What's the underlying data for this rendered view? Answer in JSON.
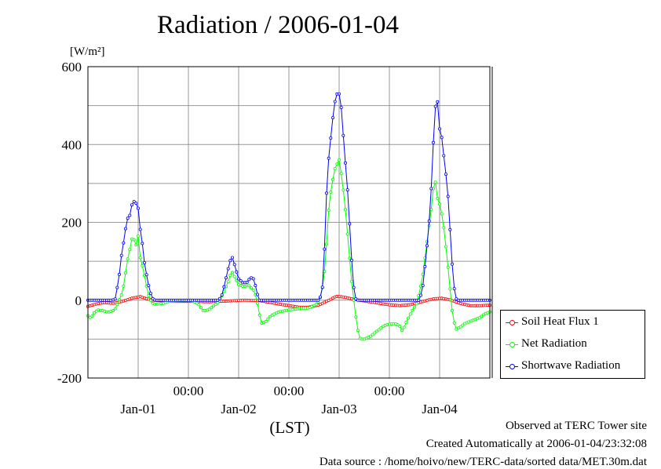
{
  "chart_data": {
    "type": "line",
    "title": "Radiation / 2006-01-04",
    "ylabel": "[W/m²]",
    "xlabel": "(LST)",
    "ylim": [
      -200,
      600
    ],
    "yticks": [
      -200,
      0,
      200,
      400,
      600
    ],
    "xlim": [
      0,
      4
    ],
    "x_time_ticks": [
      {
        "x": 1,
        "label": "00:00"
      },
      {
        "x": 2,
        "label": "00:00"
      },
      {
        "x": 3,
        "label": "00:00"
      }
    ],
    "x_day_labels": [
      {
        "x": 0.5,
        "label": "Jan-01"
      },
      {
        "x": 1.5,
        "label": "Jan-02"
      },
      {
        "x": 2.5,
        "label": "Jan-03"
      },
      {
        "x": 3.5,
        "label": "Jan-04"
      }
    ],
    "x_gridlines": [
      0.5,
      1,
      1.5,
      2,
      2.5,
      3,
      3.5
    ],
    "y_gridlines": [
      -100,
      0,
      100,
      200,
      300,
      400,
      500
    ],
    "grid": true,
    "legend_position": "bottom-right",
    "series": [
      {
        "name": "Soil Heat Flux 1",
        "color": "#ff0000",
        "points": [
          [
            0,
            -16
          ],
          [
            0.08,
            -10
          ],
          [
            0.16,
            -6
          ],
          [
            0.24,
            -8
          ],
          [
            0.3,
            -6
          ],
          [
            0.38,
            0
          ],
          [
            0.45,
            6
          ],
          [
            0.52,
            9
          ],
          [
            0.58,
            4
          ],
          [
            0.65,
            0
          ],
          [
            0.75,
            -2
          ],
          [
            0.85,
            -3
          ],
          [
            1,
            -3
          ],
          [
            1.2,
            -4
          ],
          [
            1.4,
            -2
          ],
          [
            1.55,
            0
          ],
          [
            1.7,
            -1
          ],
          [
            1.8,
            -5
          ],
          [
            1.9,
            -10
          ],
          [
            2.0,
            -14
          ],
          [
            2.1,
            -18
          ],
          [
            2.2,
            -18
          ],
          [
            2.3,
            -12
          ],
          [
            2.4,
            0
          ],
          [
            2.47,
            10
          ],
          [
            2.55,
            8
          ],
          [
            2.65,
            2
          ],
          [
            2.75,
            -2
          ],
          [
            2.9,
            -8
          ],
          [
            3.0,
            -12
          ],
          [
            3.1,
            -14
          ],
          [
            3.2,
            -12
          ],
          [
            3.3,
            -6
          ],
          [
            3.38,
            0
          ],
          [
            3.45,
            4
          ],
          [
            3.52,
            5
          ],
          [
            3.6,
            1
          ],
          [
            3.7,
            -8
          ],
          [
            3.8,
            -14
          ],
          [
            3.9,
            -14
          ],
          [
            4,
            -13
          ]
        ]
      },
      {
        "name": "Net Radiation",
        "color": "#00ff00",
        "points": [
          [
            0,
            -40
          ],
          [
            0.03,
            -46
          ],
          [
            0.06,
            -33
          ],
          [
            0.1,
            -25
          ],
          [
            0.15,
            -27
          ],
          [
            0.2,
            -31
          ],
          [
            0.25,
            -27
          ],
          [
            0.28,
            -20
          ],
          [
            0.3,
            -5
          ],
          [
            0.33,
            10
          ],
          [
            0.35,
            30
          ],
          [
            0.37,
            60
          ],
          [
            0.39,
            100
          ],
          [
            0.41,
            120
          ],
          [
            0.43,
            150
          ],
          [
            0.45,
            170
          ],
          [
            0.47,
            135
          ],
          [
            0.49,
            150
          ],
          [
            0.5,
            165
          ],
          [
            0.52,
            110
          ],
          [
            0.55,
            80
          ],
          [
            0.58,
            40
          ],
          [
            0.61,
            5
          ],
          [
            0.65,
            -10
          ],
          [
            0.7,
            -10
          ],
          [
            0.75,
            -8
          ],
          [
            0.8,
            -3
          ],
          [
            0.9,
            -2
          ],
          [
            1,
            0
          ],
          [
            1.05,
            -3
          ],
          [
            1.1,
            -10
          ],
          [
            1.15,
            -28
          ],
          [
            1.2,
            -25
          ],
          [
            1.25,
            -15
          ],
          [
            1.3,
            -5
          ],
          [
            1.35,
            20
          ],
          [
            1.4,
            50
          ],
          [
            1.43,
            75
          ],
          [
            1.46,
            60
          ],
          [
            1.5,
            40
          ],
          [
            1.55,
            35
          ],
          [
            1.6,
            38
          ],
          [
            1.65,
            25
          ],
          [
            1.68,
            5
          ],
          [
            1.7,
            -30
          ],
          [
            1.73,
            -60
          ],
          [
            1.77,
            -55
          ],
          [
            1.82,
            -40
          ],
          [
            1.9,
            -30
          ],
          [
            2.0,
            -25
          ],
          [
            2.1,
            -22
          ],
          [
            2.2,
            -20
          ],
          [
            2.28,
            -10
          ],
          [
            2.32,
            10
          ],
          [
            2.35,
            60
          ],
          [
            2.38,
            160
          ],
          [
            2.4,
            250
          ],
          [
            2.43,
            300
          ],
          [
            2.46,
            340
          ],
          [
            2.5,
            360
          ],
          [
            2.53,
            310
          ],
          [
            2.56,
            240
          ],
          [
            2.59,
            150
          ],
          [
            2.62,
            60
          ],
          [
            2.65,
            -10
          ],
          [
            2.68,
            -70
          ],
          [
            2.71,
            -100
          ],
          [
            2.75,
            -100
          ],
          [
            2.8,
            -95
          ],
          [
            2.85,
            -85
          ],
          [
            2.9,
            -75
          ],
          [
            2.95,
            -65
          ],
          [
            3.0,
            -62
          ],
          [
            3.05,
            -60
          ],
          [
            3.1,
            -65
          ],
          [
            3.13,
            -80
          ],
          [
            3.17,
            -55
          ],
          [
            3.22,
            -30
          ],
          [
            3.27,
            -10
          ],
          [
            3.3,
            20
          ],
          [
            3.33,
            60
          ],
          [
            3.36,
            120
          ],
          [
            3.39,
            180
          ],
          [
            3.42,
            240
          ],
          [
            3.45,
            320
          ],
          [
            3.48,
            260
          ],
          [
            3.51,
            240
          ],
          [
            3.54,
            190
          ],
          [
            3.57,
            120
          ],
          [
            3.6,
            40
          ],
          [
            3.63,
            -40
          ],
          [
            3.66,
            -75
          ],
          [
            3.7,
            -70
          ],
          [
            3.75,
            -60
          ],
          [
            3.8,
            -55
          ],
          [
            3.85,
            -50
          ],
          [
            3.9,
            -45
          ],
          [
            3.95,
            -35
          ],
          [
            4,
            -30
          ]
        ]
      },
      {
        "name": "Shortwave Radiation",
        "color": "#0000ff",
        "points": [
          [
            0,
            0
          ],
          [
            0.24,
            0
          ],
          [
            0.27,
            2
          ],
          [
            0.29,
            30
          ],
          [
            0.31,
            60
          ],
          [
            0.33,
            110
          ],
          [
            0.35,
            140
          ],
          [
            0.37,
            175
          ],
          [
            0.39,
            210
          ],
          [
            0.41,
            212
          ],
          [
            0.43,
            230
          ],
          [
            0.45,
            270
          ],
          [
            0.47,
            230
          ],
          [
            0.49,
            272
          ],
          [
            0.51,
            200
          ],
          [
            0.54,
            150
          ],
          [
            0.56,
            100
          ],
          [
            0.58,
            70
          ],
          [
            0.61,
            30
          ],
          [
            0.64,
            5
          ],
          [
            0.67,
            0
          ],
          [
            1.3,
            0
          ],
          [
            1.33,
            10
          ],
          [
            1.36,
            40
          ],
          [
            1.39,
            75
          ],
          [
            1.42,
            105
          ],
          [
            1.44,
            110
          ],
          [
            1.47,
            80
          ],
          [
            1.5,
            55
          ],
          [
            1.54,
            45
          ],
          [
            1.58,
            45
          ],
          [
            1.61,
            55
          ],
          [
            1.64,
            60
          ],
          [
            1.67,
            35
          ],
          [
            1.7,
            0
          ],
          [
            2.3,
            0
          ],
          [
            2.33,
            20
          ],
          [
            2.35,
            100
          ],
          [
            2.37,
            250
          ],
          [
            2.39,
            350
          ],
          [
            2.41,
            400
          ],
          [
            2.43,
            450
          ],
          [
            2.45,
            500
          ],
          [
            2.47,
            525
          ],
          [
            2.49,
            535
          ],
          [
            2.51,
            525
          ],
          [
            2.53,
            470
          ],
          [
            2.55,
            390
          ],
          [
            2.57,
            330
          ],
          [
            2.59,
            260
          ],
          [
            2.61,
            170
          ],
          [
            2.63,
            80
          ],
          [
            2.65,
            20
          ],
          [
            2.67,
            0
          ],
          [
            3.3,
            0
          ],
          [
            3.33,
            30
          ],
          [
            3.36,
            100
          ],
          [
            3.39,
            180
          ],
          [
            3.42,
            300
          ],
          [
            3.44,
            420
          ],
          [
            3.46,
            505
          ],
          [
            3.48,
            510
          ],
          [
            3.5,
            440
          ],
          [
            3.52,
            420
          ],
          [
            3.54,
            375
          ],
          [
            3.56,
            330
          ],
          [
            3.58,
            280
          ],
          [
            3.6,
            200
          ],
          [
            3.62,
            110
          ],
          [
            3.64,
            40
          ],
          [
            3.66,
            5
          ],
          [
            3.68,
            0
          ],
          [
            4,
            0
          ]
        ]
      }
    ]
  },
  "footer": {
    "site": "Observed at TERC Tower site",
    "created": "Created Automatically at 2006-01-04/23:32:08",
    "source": "Data source : /home/hoivo/new/TERC-data/sorted  data/MET.30m.dat"
  }
}
